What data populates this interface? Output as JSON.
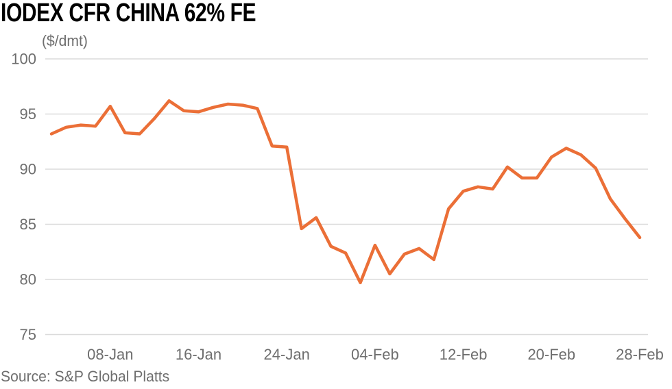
{
  "title": "IODEX CFR CHINA 62% FE",
  "unit_label": "($/dmt)",
  "source": "Source: S&P Global Platts",
  "colors": {
    "line": "#EB6F37",
    "grid": "#DBDBDB",
    "axis_text": "#6E6E6E",
    "title_text": "#000000",
    "background": "#FFFFFF"
  },
  "chart_data": {
    "type": "line",
    "title": "IODEX CFR CHINA 62% FE",
    "xlabel": "",
    "ylabel": "($/dmt)",
    "ylim": [
      75,
      100
    ],
    "yticks": [
      100,
      95,
      90,
      85,
      80,
      75
    ],
    "grid": "horizontal",
    "legend": "none",
    "xticklabels": [
      "08-Jan",
      "16-Jan",
      "24-Jan",
      "04-Feb",
      "12-Feb",
      "20-Feb",
      "28-Feb"
    ],
    "xtick_indices": [
      4,
      10,
      16,
      22,
      28,
      34,
      40
    ],
    "series": [
      {
        "name": "IODEX CFR China 62% Fe",
        "color": "#EB6F37",
        "x": [
          "02-Jan",
          "03-Jan",
          "06-Jan",
          "07-Jan",
          "08-Jan",
          "09-Jan",
          "10-Jan",
          "13-Jan",
          "14-Jan",
          "15-Jan",
          "16-Jan",
          "17-Jan",
          "20-Jan",
          "21-Jan",
          "22-Jan",
          "23-Jan",
          "24-Jan",
          "28-Jan",
          "29-Jan",
          "30-Jan",
          "31-Jan",
          "03-Feb",
          "04-Feb",
          "05-Feb",
          "06-Feb",
          "07-Feb",
          "10-Feb",
          "11-Feb",
          "12-Feb",
          "13-Feb",
          "14-Feb",
          "17-Feb",
          "18-Feb",
          "19-Feb",
          "20-Feb",
          "21-Feb",
          "24-Feb",
          "25-Feb",
          "26-Feb",
          "27-Feb",
          "28-Feb"
        ],
        "values": [
          93.2,
          93.8,
          94.0,
          93.9,
          95.7,
          93.3,
          93.2,
          94.6,
          96.2,
          95.3,
          95.2,
          95.6,
          95.9,
          95.8,
          95.5,
          92.1,
          92.0,
          84.6,
          85.6,
          83.0,
          82.4,
          79.7,
          83.1,
          80.5,
          82.3,
          82.8,
          81.8,
          86.4,
          88.0,
          88.4,
          88.2,
          90.2,
          89.2,
          89.2,
          91.1,
          91.9,
          91.3,
          90.1,
          87.3,
          85.5,
          83.8
        ]
      }
    ]
  }
}
